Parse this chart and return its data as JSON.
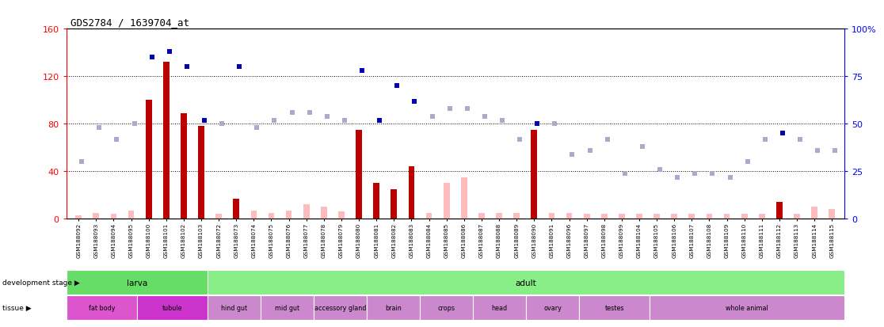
{
  "title": "GDS2784 / 1639704_at",
  "samples": [
    "GSM188092",
    "GSM188093",
    "GSM188094",
    "GSM188095",
    "GSM188100",
    "GSM188101",
    "GSM188102",
    "GSM188103",
    "GSM188072",
    "GSM188073",
    "GSM188074",
    "GSM188075",
    "GSM188076",
    "GSM188077",
    "GSM188078",
    "GSM188079",
    "GSM188080",
    "GSM188081",
    "GSM188082",
    "GSM188083",
    "GSM188084",
    "GSM188085",
    "GSM188086",
    "GSM188087",
    "GSM188088",
    "GSM188089",
    "GSM188090",
    "GSM188091",
    "GSM188096",
    "GSM188097",
    "GSM188098",
    "GSM188099",
    "GSM188104",
    "GSM188105",
    "GSM188106",
    "GSM188107",
    "GSM188108",
    "GSM188109",
    "GSM188110",
    "GSM188111",
    "GSM188112",
    "GSM188113",
    "GSM188114",
    "GSM188115"
  ],
  "count_values": [
    3,
    5,
    4,
    7,
    100,
    132,
    89,
    78,
    4,
    17,
    7,
    5,
    7,
    12,
    10,
    6,
    75,
    30,
    25,
    44,
    5,
    30,
    35,
    5,
    5,
    5,
    75,
    5,
    5,
    4,
    4,
    4,
    4,
    4,
    4,
    4,
    4,
    4,
    4,
    4,
    14,
    4,
    10,
    8
  ],
  "count_absent": [
    true,
    true,
    true,
    true,
    false,
    false,
    false,
    false,
    true,
    false,
    true,
    true,
    true,
    true,
    true,
    true,
    false,
    false,
    false,
    false,
    true,
    true,
    true,
    true,
    true,
    true,
    false,
    true,
    true,
    true,
    true,
    true,
    true,
    true,
    true,
    true,
    true,
    true,
    true,
    true,
    false,
    true,
    true,
    true
  ],
  "rank_values": [
    30,
    48,
    42,
    50,
    85,
    88,
    80,
    52,
    50,
    80,
    48,
    52,
    56,
    56,
    54,
    52,
    78,
    52,
    70,
    62,
    54,
    58,
    58,
    54,
    52,
    42,
    50,
    50,
    34,
    36,
    42,
    24,
    38,
    26,
    22,
    24,
    24,
    22,
    30,
    42,
    45,
    42,
    36,
    36
  ],
  "rank_absent": [
    true,
    true,
    true,
    true,
    false,
    false,
    false,
    false,
    true,
    false,
    true,
    true,
    true,
    true,
    true,
    true,
    false,
    false,
    false,
    false,
    true,
    true,
    true,
    true,
    true,
    true,
    false,
    true,
    true,
    true,
    true,
    true,
    true,
    true,
    true,
    true,
    true,
    true,
    true,
    true,
    false,
    true,
    true,
    true
  ],
  "ylim_left": [
    0,
    160
  ],
  "ylim_right": [
    0,
    100
  ],
  "yticks_left": [
    0,
    40,
    80,
    120,
    160
  ],
  "yticks_right": [
    0,
    25,
    50,
    75,
    100
  ],
  "color_count": "#bb0000",
  "color_rank": "#0000bb",
  "color_count_absent": "#ffbbbb",
  "color_rank_absent": "#aaaacc",
  "dev_stages": [
    {
      "label": "larva",
      "start": 0,
      "end": 8,
      "color": "#66dd66"
    },
    {
      "label": "adult",
      "start": 8,
      "end": 44,
      "color": "#88ee88"
    }
  ],
  "tissues": [
    {
      "label": "fat body",
      "start": 0,
      "end": 4,
      "color": "#dd55cc"
    },
    {
      "label": "tubule",
      "start": 4,
      "end": 8,
      "color": "#cc33cc"
    },
    {
      "label": "hind gut",
      "start": 8,
      "end": 11,
      "color": "#cc88cc"
    },
    {
      "label": "mid gut",
      "start": 11,
      "end": 14,
      "color": "#cc88cc"
    },
    {
      "label": "accessory gland",
      "start": 14,
      "end": 17,
      "color": "#cc88cc"
    },
    {
      "label": "brain",
      "start": 17,
      "end": 20,
      "color": "#cc88cc"
    },
    {
      "label": "crops",
      "start": 20,
      "end": 23,
      "color": "#cc88cc"
    },
    {
      "label": "head",
      "start": 23,
      "end": 26,
      "color": "#cc88cc"
    },
    {
      "label": "ovary",
      "start": 26,
      "end": 29,
      "color": "#cc88cc"
    },
    {
      "label": "testes",
      "start": 29,
      "end": 33,
      "color": "#cc88cc"
    },
    {
      "label": "whole animal",
      "start": 33,
      "end": 44,
      "color": "#cc88cc"
    }
  ],
  "bg_xtick": "#e0e0e0",
  "fig_width": 11.16,
  "fig_height": 4.14,
  "dpi": 100
}
